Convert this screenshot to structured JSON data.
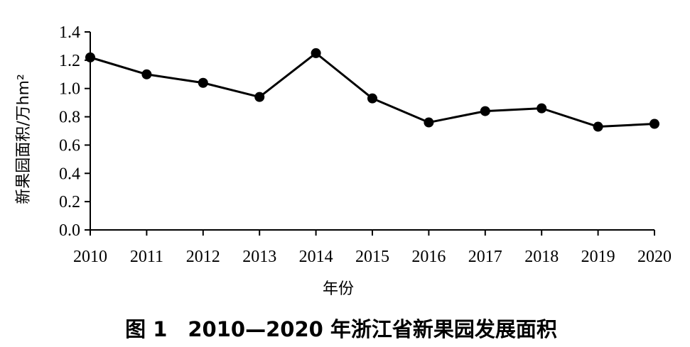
{
  "chart_data": {
    "type": "line",
    "title": "图 1　2010—2020 年浙江省新果园发展面积",
    "xlabel": "年份",
    "ylabel": "新果园面积/万hm²",
    "x": [
      "2010",
      "2011",
      "2012",
      "2013",
      "2014",
      "2015",
      "2016",
      "2017",
      "2018",
      "2019",
      "2020"
    ],
    "series": [
      {
        "values": [
          1.22,
          1.1,
          1.04,
          0.94,
          1.25,
          0.93,
          0.76,
          0.84,
          0.86,
          0.73,
          0.75
        ]
      }
    ],
    "ylim": [
      0,
      1.4
    ],
    "yticks": [
      "0.0",
      "0.2",
      "0.4",
      "0.6",
      "0.8",
      "1.0",
      "1.2",
      "1.4"
    ],
    "grid": false,
    "legend": "none",
    "line_color": "#000000",
    "marker_color": "#000000"
  }
}
